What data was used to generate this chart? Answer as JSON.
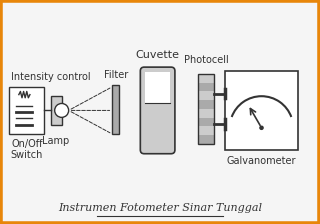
{
  "title": "Instrumen Fotometer Sinar Tunggal",
  "bg_color": "#f5f5f5",
  "border_color": "#e8860a",
  "border_width": 4,
  "labels": {
    "intensity_control": "Intensity control",
    "on_off": "On/Off\nSwitch",
    "lamp": "Lamp",
    "filter": "Filter",
    "cuvette": "Cuvette",
    "photocell": "Photocell",
    "galvanometer": "Galvanometer"
  },
  "font_size_label": 7,
  "font_size_title": 8
}
